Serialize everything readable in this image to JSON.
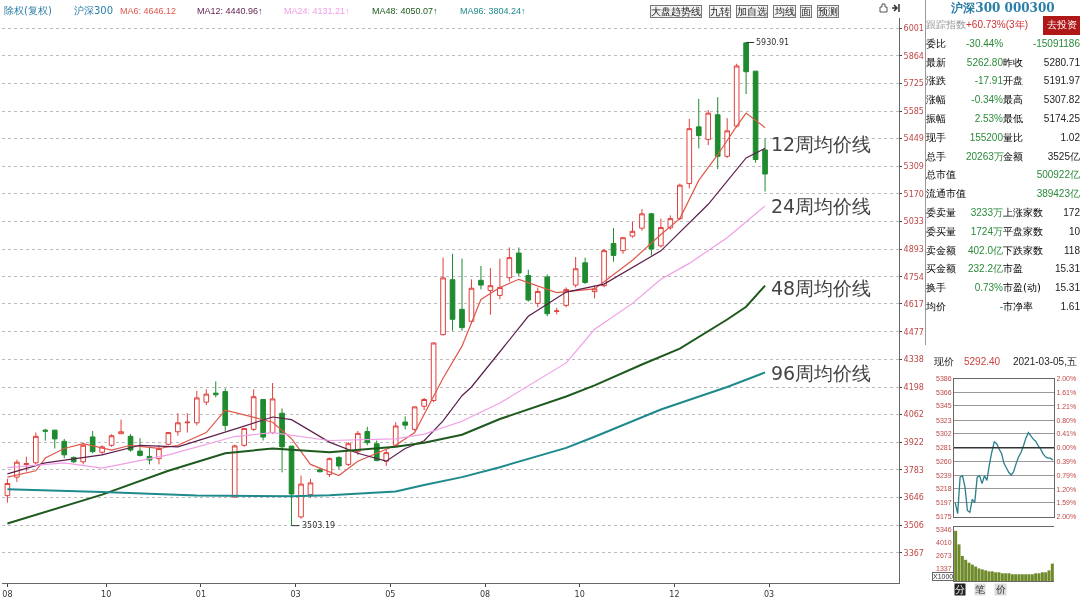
{
  "chart_data": [
    {
      "type": "candlestick",
      "title": "沪深300",
      "subtitle": "除权(复权)",
      "legend": "top left",
      "grid": "y",
      "x": [
        "2019-08-23",
        "2019-08-30",
        "2019-09-06",
        "2019-09-13",
        "2019-09-20",
        "2019-09-27",
        "2019-10-04",
        "2019-10-11",
        "2019-10-18",
        "2019-10-25",
        "2019-11-01",
        "2019-11-08",
        "2019-11-15",
        "2019-11-22",
        "2019-11-29",
        "2019-12-06",
        "2019-12-13",
        "2019-12-20",
        "2019-12-27",
        "2020-01-03",
        "2020-01-10",
        "2020-01-17",
        "2020-01-24",
        "2020-01-31",
        "2020-02-07",
        "2020-02-14",
        "2020-02-21",
        "2020-02-28",
        "2020-03-06",
        "2020-03-13",
        "2020-03-20",
        "2020-03-27",
        "2020-04-03",
        "2020-04-10",
        "2020-04-17",
        "2020-04-24",
        "2020-05-01",
        "2020-05-08",
        "2020-05-15",
        "2020-05-22",
        "2020-05-29",
        "2020-06-05",
        "2020-06-12",
        "2020-06-19",
        "2020-06-26",
        "2020-07-03",
        "2020-07-10",
        "2020-07-17",
        "2020-07-24",
        "2020-07-31",
        "2020-08-07",
        "2020-08-14",
        "2020-08-21",
        "2020-08-28",
        "2020-09-04",
        "2020-09-11",
        "2020-09-18",
        "2020-09-25",
        "2020-10-02",
        "2020-10-09",
        "2020-10-16",
        "2020-10-23",
        "2020-10-30",
        "2020-11-06",
        "2020-11-13",
        "2020-11-20",
        "2020-11-27",
        "2020-12-04",
        "2020-12-11",
        "2020-12-18",
        "2020-12-25",
        "2021-01-01",
        "2021-01-08",
        "2021-01-15",
        "2021-01-22",
        "2021-01-29",
        "2021-02-05",
        "2021-02-12",
        "2021-02-19",
        "2021-02-26",
        "2021-03-05"
      ],
      "series": [
        {
          "type": "candlestick",
          "colors": [
            "#e0403c",
            "#e0403c",
            "#e0403c",
            "#e0403c",
            "#1e8b2e",
            "#1e8b2e",
            "#1e8b2e",
            "#1e8b2e",
            "#e0403c",
            "#1e8b2e",
            "#e0403c",
            "#e0403c",
            "#e0403c",
            "#1e8b2e",
            "#1e8b2e",
            "#1e8b2e",
            "#e0403c",
            "#e0403c",
            "#e0403c",
            "#e0403c",
            "#e0403c",
            "#e0403c",
            "#1e8b2e",
            "#1e8b2e",
            "#e0403c",
            "#e0403c",
            "#e0403c",
            "#1e8b2e",
            "#e0403c",
            "#1e8b2e",
            "#1e8b2e",
            "#e0403c",
            "#e0403c",
            "#1e8b2e",
            "#e0403c",
            "#1e8b2e",
            "#e0403c",
            "#e0403c",
            "#1e8b2e",
            "#1e8b2e",
            "#e0403c",
            "#e0403c",
            "#1e8b2e",
            "#e0403c",
            "#e0403c",
            "#e0403c",
            "#e0403c",
            "#1e8b2e",
            "#1e8b2e",
            "#e0403c",
            "#1e8b2e",
            "#e0403c",
            "#e0403c",
            "#e0403c",
            "#1e8b2e",
            "#1e8b2e",
            "#e0403c",
            "#1e8b2e",
            "#e0403c",
            "#e0403c",
            "#e0403c",
            "#1e8b2e",
            "#e0403c",
            "#e0403c",
            "#1e8b2e",
            "#e0403c",
            "#e0403c",
            "#e0403c",
            "#1e8b2e",
            "#e0403c",
            "#e0403c",
            "#e0403c",
            "#e0403c",
            "#1e8b2e",
            "#e0403c",
            "#1e8b2e",
            "#e0403c",
            "#e0403c",
            "#1e8b2e",
            "#1e8b2e",
            "#1e8b2e"
          ],
          "ohlc": [
            [
              3654,
              3739,
              3619,
              3715
            ],
            [
              3747,
              3835,
              3723,
              3822
            ],
            [
              3810,
              3850,
              3775,
              3815
            ],
            [
              3819,
              3971,
              3811,
              3952
            ],
            [
              3983,
              3990,
              3930,
              3978
            ],
            [
              3983,
              3985,
              3891,
              3939
            ],
            [
              3927,
              3939,
              3843,
              3859
            ],
            [
              3846,
              3851,
              3819,
              3824
            ],
            [
              3824,
              3920,
              3811,
              3907
            ],
            [
              3949,
              3979,
              3867,
              3875
            ],
            [
              3872,
              3907,
              3859,
              3899
            ],
            [
              3907,
              3963,
              3899,
              3955
            ],
            [
              3965,
              4036,
              3965,
              3975
            ],
            [
              3952,
              3963,
              3875,
              3883
            ],
            [
              3878,
              3943,
              3851,
              3856
            ],
            [
              3851,
              3899,
              3811,
              3833
            ],
            [
              3840,
              3907,
              3811,
              3891
            ],
            [
              3912,
              3971,
              3907,
              3971
            ],
            [
              3975,
              4068,
              3955,
              4020
            ],
            [
              4020,
              4068,
              3971,
              4023
            ],
            [
              4020,
              4180,
              4007,
              4145
            ],
            [
              4124,
              4188,
              4108,
              4164
            ],
            [
              4169,
              4228,
              4148,
              4161
            ],
            [
              4177,
              4193,
              3979,
              4007
            ],
            [
              3647,
              3910,
              3643,
              3904
            ],
            [
              3907,
              3995,
              3899,
              3991
            ],
            [
              3987,
              4188,
              3979,
              4151
            ],
            [
              4137,
              4140,
              3931,
              3948
            ],
            [
              3971,
              4220,
              3963,
              4140
            ],
            [
              4068,
              4092,
              3771,
              3899
            ],
            [
              3903,
              3903,
              3503.19,
              3662
            ],
            [
              3547,
              3755,
              3538,
              3712
            ],
            [
              3659,
              3739,
              3643,
              3718
            ],
            [
              3784,
              3792,
              3771,
              3774
            ],
            [
              3760,
              3846,
              3747,
              3840
            ],
            [
              3846,
              3851,
              3787,
              3803
            ],
            [
              3811,
              3923,
              3803,
              3915
            ],
            [
              3875,
              3979,
              3859,
              3967
            ],
            [
              3976,
              4000,
              3907,
              3920
            ],
            [
              3915,
              3931,
              3827,
              3830
            ],
            [
              3827,
              3883,
              3803,
              3870
            ],
            [
              3907,
              4023,
              3899,
              4004
            ],
            [
              4024,
              4052,
              3987,
              4008
            ],
            [
              3987,
              4103,
              3979,
              4100
            ],
            [
              4103,
              4145,
              4084,
              4137
            ],
            [
              4132,
              4424,
              4124,
              4421
            ],
            [
              4463,
              4850,
              4458,
              4748
            ],
            [
              4739,
              4869,
              4482,
              4540
            ],
            [
              4590,
              4845,
              4482,
              4498
            ],
            [
              4530,
              4741,
              4520,
              4696
            ],
            [
              4736,
              4808,
              4690,
              4712
            ],
            [
              4685,
              4797,
              4563,
              4709
            ],
            [
              4660,
              4845,
              4640,
              4700
            ],
            [
              4749,
              4901,
              4730,
              4850
            ],
            [
              4873,
              4901,
              4757,
              4773
            ],
            [
              4760,
              4789,
              4629,
              4637
            ],
            [
              4620,
              4700,
              4600,
              4680
            ],
            [
              4753,
              4765,
              4555,
              4568
            ],
            [
              4580,
              4598,
              4565,
              4582
            ],
            [
              4610,
              4700,
              4600,
              4690
            ],
            [
              4712,
              4853,
              4700,
              4794
            ],
            [
              4824,
              4850,
              4717,
              4725
            ],
            [
              4679,
              4709,
              4645,
              4693
            ],
            [
              4709,
              4893,
              4701,
              4885
            ],
            [
              4921,
              4998,
              4829,
              4861
            ],
            [
              4885,
              4953,
              4869,
              4950
            ],
            [
              4958,
              5030,
              4950,
              4982
            ],
            [
              4998,
              5094,
              4985,
              5070
            ],
            [
              5070,
              5075,
              4861,
              4893
            ],
            [
              4909,
              5046,
              4901,
              5001
            ],
            [
              5000,
              5062,
              4990,
              5046
            ],
            [
              5046,
              5222,
              5038,
              5214
            ],
            [
              5222,
              5547,
              5198,
              5498
            ],
            [
              5507,
              5648,
              5399,
              5463
            ],
            [
              5444,
              5592,
              5415,
              5576
            ],
            [
              5568,
              5656,
              5295,
              5359
            ],
            [
              5359,
              5551,
              5351,
              5487
            ],
            [
              5511,
              5824,
              5503,
              5813
            ],
            [
              5929,
              5930.91,
              5672,
              5784
            ],
            [
              5787,
              5787,
              5327,
              5343
            ],
            [
              5391,
              5447,
              5182,
              5270
            ]
          ]
        },
        {
          "type": "line",
          "name": "MA6: 4646.12",
          "color": "#e0574a",
          "x": [
            "2019-08-23",
            "2019-09-13",
            "2019-09-20",
            "2019-10-04",
            "2019-10-18",
            "2019-11-08",
            "2019-11-22",
            "2019-12-13",
            "2019-12-27",
            "2020-01-17",
            "2020-01-31",
            "2020-02-14",
            "2020-03-06",
            "2020-03-20",
            "2020-04-03",
            "2020-04-24",
            "2020-05-08",
            "2020-06-05",
            "2020-06-19",
            "2020-07-10",
            "2020-07-24",
            "2020-08-07",
            "2020-08-21",
            "2020-09-04",
            "2020-10-02",
            "2020-10-30",
            "2020-11-27",
            "2020-12-18",
            "2021-01-01",
            "2021-01-15",
            "2021-01-29",
            "2021-02-12",
            "2021-02-19",
            "2021-03-05"
          ],
          "values": [
            3747,
            3779,
            3843,
            3891,
            3915,
            3883,
            3907,
            3891,
            3907,
            3971,
            4084,
            4060,
            4023,
            3940,
            3811,
            3755,
            3827,
            3907,
            3971,
            4244,
            4405,
            4640,
            4700,
            4741,
            4674,
            4693,
            4837,
            4966,
            5046,
            5238,
            5367,
            5511,
            5576,
            5503
          ]
        },
        {
          "type": "line",
          "name": "MA12: 4440.96↑",
          "color": "#5c1f4c",
          "x": [
            "2019-08-23",
            "2019-09-20",
            "2019-11-01",
            "2019-11-29",
            "2019-12-27",
            "2020-02-07",
            "2020-03-06",
            "2020-03-20",
            "2020-04-17",
            "2020-05-08",
            "2020-05-29",
            "2020-06-12",
            "2020-06-26",
            "2020-07-10",
            "2020-07-24",
            "2020-07-31",
            "2020-08-21",
            "2020-09-11",
            "2020-10-09",
            "2020-11-06",
            "2020-12-18",
            "2021-01-22",
            "2021-02-19",
            "2021-03-05"
          ],
          "values": [
            3763,
            3819,
            3859,
            3907,
            3899,
            3988,
            4049,
            4036,
            3923,
            3867,
            3827,
            3891,
            3930,
            4030,
            4156,
            4200,
            4377,
            4555,
            4677,
            4717,
            4884,
            5118,
            5351,
            5399
          ]
        },
        {
          "type": "line",
          "name": "MA24: 4131.21↑",
          "color": "#f09ee6",
          "x": [
            "2019-08-23",
            "2019-10-04",
            "2019-11-01",
            "2019-12-20",
            "2020-02-07",
            "2020-03-06",
            "2020-04-17",
            "2020-06-05",
            "2020-06-26",
            "2020-07-24",
            "2020-08-21",
            "2020-10-09",
            "2020-10-30",
            "2020-11-27",
            "2020-12-18",
            "2021-01-08",
            "2021-02-05",
            "2021-03-05"
          ],
          "values": [
            3795,
            3819,
            3792,
            3859,
            3951,
            3971,
            3931,
            3939,
            3963,
            4028,
            4119,
            4321,
            4490,
            4620,
            4741,
            4821,
            4950,
            5110
          ]
        },
        {
          "type": "line",
          "name": "MA48: 4050.07↑",
          "color": "#1e5a1e",
          "x": [
            "2019-08-23",
            "2019-11-01",
            "2019-12-20",
            "2020-01-31",
            "2020-03-06",
            "2020-04-17",
            "2020-06-05",
            "2020-06-26",
            "2020-07-24",
            "2020-08-21",
            "2020-10-09",
            "2020-10-30",
            "2020-12-04",
            "2021-01-01",
            "2021-02-05",
            "2021-02-19",
            "2021-03-05"
          ],
          "values": [
            3514,
            3659,
            3779,
            3867,
            3891,
            3872,
            3900,
            3920,
            3960,
            4039,
            4152,
            4208,
            4313,
            4393,
            4539,
            4603,
            4709
          ]
        },
        {
          "type": "line",
          "name": "MA96: 3804.24↑",
          "color": "#1e8a8c",
          "x": [
            "2019-08-23",
            "2019-11-01",
            "2020-01-10",
            "2020-03-20",
            "2020-04-17",
            "2020-06-05",
            "2020-06-26",
            "2020-07-24",
            "2020-08-21",
            "2020-10-09",
            "2020-10-30",
            "2020-12-18",
            "2021-02-05",
            "2021-03-05"
          ],
          "values": [
            3686,
            3672,
            3655,
            3651,
            3656,
            3675,
            3707,
            3747,
            3797,
            3894,
            3950,
            4087,
            4200,
            4273
          ]
        }
      ],
      "xlim": [
        "2019-08-19",
        "2021-06-12"
      ],
      "xticks": [
        {
          "value": "2019-08-23",
          "label": "08"
        },
        {
          "value": "2019-11-04",
          "label": "10"
        },
        {
          "value": "2020-01-13",
          "label": "01"
        },
        {
          "value": "2020-03-23",
          "label": "03"
        },
        {
          "value": "2020-06-01",
          "label": "05"
        },
        {
          "value": "2020-08-10",
          "label": "08"
        },
        {
          "value": "2020-10-19",
          "label": "10"
        },
        {
          "value": "2020-12-28",
          "label": "12"
        },
        {
          "value": "2021-03-08",
          "label": "03"
        }
      ],
      "ylim": [
        3215,
        6054
      ],
      "yticks": [
        3367,
        3506,
        3646,
        3783,
        3922,
        4062,
        4198,
        4338,
        4477,
        4617,
        4754,
        4893,
        5033,
        5170,
        5309,
        5449,
        5585,
        5725,
        5864,
        6001
      ],
      "annotations": [
        "大盘趋势线",
        "九转",
        "加自选",
        "均线",
        "面",
        "预测",
        {
          "text": "5930.91",
          "x": "2021-02-19",
          "y": 5930.91
        },
        {
          "text": "3503.19",
          "x": "2020-03-20",
          "y": 3503.19
        },
        {
          "text": "12周均价线",
          "x": "2021-03-08",
          "y": 5420
        },
        {
          "text": "24周均价线",
          "x": "2021-03-08",
          "y": 5110
        },
        {
          "text": "48周均价线",
          "x": "2021-03-08",
          "y": 4695
        },
        {
          "text": "96周均价线",
          "x": "2021-03-08",
          "y": 4269
        }
      ]
    },
    {
      "type": "other",
      "title": "沪深300 000300",
      "annotations": [
        "跟踪指数",
        "+60.73%(3年)",
        null,
        "去投资",
        "委比",
        "-30.44%",
        null,
        "-15091186",
        "最新",
        "5262.80",
        "昨收",
        "5280.71",
        "涨跌",
        "-17.91",
        "开盘",
        "5191.97",
        "涨幅",
        "-0.34%",
        "最高",
        "5307.82",
        "振幅",
        "2.53%",
        "最低",
        "5174.25",
        "现手",
        "155200",
        "量比",
        "1.02",
        "总手",
        "20263万",
        "金额",
        "3525亿",
        "总市值",
        null,
        null,
        "500922亿",
        "流通市值",
        null,
        null,
        "389423亿",
        "委卖量",
        "3233万",
        "上涨家数",
        "172",
        "委买量",
        "1724万",
        "平盘家数",
        "10",
        "卖金额",
        "402.0亿",
        "下跌家数",
        "118",
        "买金额",
        "232.2亿",
        "市盈",
        "15.31",
        "换手",
        "0.73%",
        "市盈(动)",
        "15.31",
        "均价",
        "-",
        "市净率",
        "1.61"
      ]
    },
    {
      "type": "line",
      "color": "#2a7f8c",
      "grid": "y",
      "annotations": [
        "现价",
        "5292.40",
        "2021-03-05,五"
      ],
      "categories": [
        null,
        null,
        null,
        null,
        null,
        null,
        null,
        null,
        null,
        null,
        null,
        null,
        null,
        null,
        null,
        null,
        null,
        null,
        null,
        null,
        null,
        null,
        null,
        null,
        null,
        null,
        null,
        null,
        null,
        null,
        null,
        null,
        null,
        null,
        null,
        null,
        null,
        null,
        null,
        null,
        null
      ],
      "values": [
        5197,
        5180,
        5236,
        5238,
        5221,
        5185,
        5182,
        5202,
        5197,
        5236,
        5238,
        5226,
        5238,
        5231,
        5255,
        5274,
        5290,
        5287,
        5279,
        5272,
        5257,
        5250,
        5243,
        5239,
        5245,
        5257,
        5267,
        5274,
        5284,
        5296,
        5304,
        5299,
        5294,
        5291,
        5284,
        5279,
        5272,
        5267,
        5265,
        5265,
        5262
      ],
      "ylim": [
        5175,
        5386
      ],
      "yticks": [
        5175,
        5197,
        5218,
        5239,
        5260,
        5281,
        5302,
        5323,
        5345,
        5366,
        5386
      ],
      "y2lim": [
        -2,
        2
      ],
      "y2ticks": [
        {
          "value": -2,
          "label": "2.00%"
        },
        {
          "value": -1.59,
          "label": "1.59%"
        },
        {
          "value": -1.2,
          "label": "1.20%"
        },
        {
          "value": -0.79,
          "label": "0.79%"
        },
        {
          "value": -0.39,
          "label": "0.39%"
        },
        {
          "value": 0,
          "label": "0.00%"
        },
        {
          "value": 0.41,
          "label": "0.41%"
        },
        {
          "value": 0.8,
          "label": "0.80%"
        },
        {
          "value": 1.21,
          "label": "1.21%"
        },
        {
          "value": 1.61,
          "label": "1.61%"
        },
        {
          "value": 2,
          "label": "2.00%"
        }
      ],
      "ref_lines": [
        {
          "axis": "y",
          "value": 5281,
          "color": "#333333"
        }
      ]
    },
    {
      "type": "bar",
      "color": "#6f8a2a",
      "annotations": [
        "X1000",
        "分",
        "笔",
        "价"
      ],
      "categories": [
        null,
        null,
        null,
        null,
        null,
        null,
        null,
        null,
        null,
        null,
        null,
        null,
        null,
        null,
        null,
        null,
        null,
        null,
        null,
        null,
        null,
        null,
        null,
        null,
        null,
        null,
        null,
        null,
        null,
        null
      ],
      "values": [
        5200,
        3800,
        2600,
        2200,
        1900,
        1700,
        1500,
        1300,
        1200,
        1100,
        1000,
        1000,
        900,
        900,
        800,
        800,
        800,
        700,
        700,
        700,
        700,
        700,
        700,
        700,
        800,
        800,
        900,
        900,
        1100,
        1800
      ],
      "ylim": [
        0,
        5600
      ],
      "yticks": [
        1337,
        2673,
        4010,
        5346
      ]
    }
  ]
}
